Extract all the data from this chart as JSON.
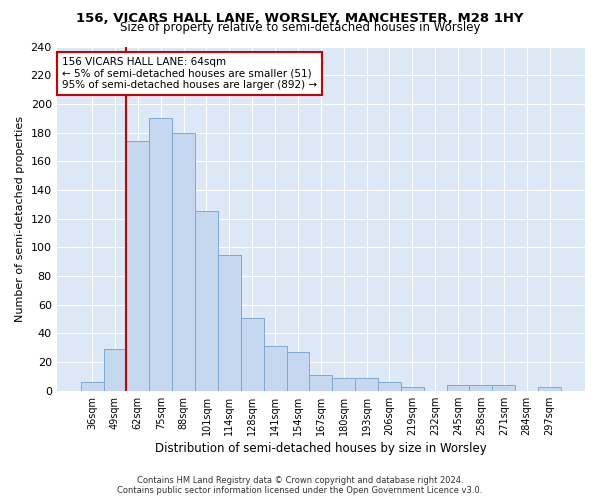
{
  "title": "156, VICARS HALL LANE, WORSLEY, MANCHESTER, M28 1HY",
  "subtitle": "Size of property relative to semi-detached houses in Worsley",
  "xlabel": "Distribution of semi-detached houses by size in Worsley",
  "ylabel": "Number of semi-detached properties",
  "bar_color": "#c5d8f0",
  "bar_edge_color": "#7aaad4",
  "fig_background_color": "#ffffff",
  "ax_background_color": "#dce8f5",
  "grid_color": "#ffffff",
  "annotation_text_line1": "156 VICARS HALL LANE: 64sqm",
  "annotation_text_line2": "← 5% of semi-detached houses are smaller (51)",
  "annotation_text_line3": "95% of semi-detached houses are larger (892) →",
  "footer_text": "Contains HM Land Registry data © Crown copyright and database right 2024.\nContains public sector information licensed under the Open Government Licence v3.0.",
  "categories": [
    "36sqm",
    "49sqm",
    "62sqm",
    "75sqm",
    "88sqm",
    "101sqm",
    "114sqm",
    "128sqm",
    "141sqm",
    "154sqm",
    "167sqm",
    "180sqm",
    "193sqm",
    "206sqm",
    "219sqm",
    "232sqm",
    "245sqm",
    "258sqm",
    "271sqm",
    "284sqm",
    "297sqm"
  ],
  "values": [
    6,
    29,
    174,
    190,
    180,
    125,
    95,
    51,
    31,
    27,
    11,
    9,
    9,
    6,
    3,
    0,
    4,
    4,
    4,
    0,
    3
  ],
  "ylim": [
    0,
    240
  ],
  "yticks": [
    0,
    20,
    40,
    60,
    80,
    100,
    120,
    140,
    160,
    180,
    200,
    220,
    240
  ],
  "vline_x_index": 2,
  "vline_color": "#cc0000",
  "ann_box_edge_color": "#cc0000",
  "ann_box_face_color": "#ffffff"
}
